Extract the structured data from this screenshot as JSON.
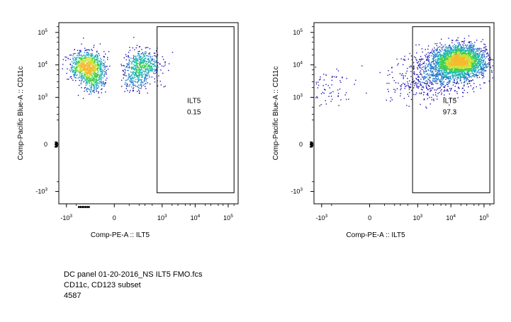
{
  "chart_data": [
    {
      "type": "scatter",
      "panel": "left",
      "xlabel": "Comp-PE-A :: ILT5",
      "ylabel": "Comp-Pacific Blue-A :: CD11c",
      "x_scale": "biexponential",
      "y_scale": "biexponential",
      "xlim": [
        -2000,
        200000
      ],
      "ylim": [
        -2000,
        200000
      ],
      "x_ticks": [
        {
          "value": -1000,
          "base": "-10",
          "exp": "3"
        },
        {
          "value": 0,
          "base": "0",
          "exp": ""
        },
        {
          "value": 1000,
          "base": "10",
          "exp": "3"
        },
        {
          "value": 10000,
          "base": "10",
          "exp": "4"
        },
        {
          "value": 100000,
          "base": "10",
          "exp": "5"
        }
      ],
      "y_ticks": [
        {
          "value": -1000,
          "base": "-10",
          "exp": "3"
        },
        {
          "value": 0,
          "base": "0",
          "exp": ""
        },
        {
          "value": 1000,
          "base": "10",
          "exp": "3"
        },
        {
          "value": 10000,
          "base": "10",
          "exp": "4"
        },
        {
          "value": 100000,
          "base": "10",
          "exp": "5"
        }
      ],
      "gate": {
        "name": "ILT5",
        "percent": "0.15",
        "x_range": [
          700,
          150000
        ],
        "y_range": [
          -1100,
          150000
        ]
      },
      "populations": [
        {
          "x_center": -250,
          "y_center": 10000,
          "x_spread": 0.32,
          "y_spread": 0.22,
          "count": 1400,
          "sign": "neg"
        },
        {
          "x_center": -150,
          "y_center": 4000,
          "x_spread": 0.25,
          "y_spread": 0.22,
          "count": 500,
          "sign": "neg"
        }
      ],
      "gate_events": [
        {
          "x": 2000,
          "y": 25000
        },
        {
          "x": 1500,
          "y": 7000
        },
        {
          "x": 900,
          "y": 2500
        },
        {
          "x": 1200,
          "y": 2300
        }
      ],
      "density_colors": [
        "#1c10b0",
        "#1f78c8",
        "#19b5b0",
        "#3ecf4a",
        "#cfe035",
        "#f6b92e"
      ]
    },
    {
      "type": "scatter",
      "panel": "right",
      "xlabel": "Comp-PE-A :: ILT5",
      "ylabel": "Comp-Pacific Blue-A :: CD11c",
      "x_scale": "biexponential",
      "y_scale": "biexponential",
      "xlim": [
        -2000,
        200000
      ],
      "ylim": [
        -2000,
        200000
      ],
      "x_ticks": [
        {
          "value": -1000,
          "base": "-10",
          "exp": "3"
        },
        {
          "value": 0,
          "base": "0",
          "exp": ""
        },
        {
          "value": 1000,
          "base": "10",
          "exp": "3"
        },
        {
          "value": 10000,
          "base": "10",
          "exp": "4"
        },
        {
          "value": 100000,
          "base": "10",
          "exp": "5"
        }
      ],
      "y_ticks": [
        {
          "value": -1000,
          "base": "-10",
          "exp": "3"
        },
        {
          "value": 0,
          "base": "0",
          "exp": ""
        },
        {
          "value": 1000,
          "base": "10",
          "exp": "3"
        },
        {
          "value": 10000,
          "base": "10",
          "exp": "4"
        },
        {
          "value": 100000,
          "base": "10",
          "exp": "5"
        }
      ],
      "gate": {
        "name": "ILT5",
        "percent": "97.3",
        "x_range": [
          700,
          150000
        ],
        "y_range": [
          -1100,
          150000
        ]
      },
      "populations": [
        {
          "x_center": 18000,
          "y_center": 13000,
          "x_spread": 0.38,
          "y_spread": 0.24,
          "count": 2800,
          "sign": "pos"
        },
        {
          "x_center": 4000,
          "y_center": 6000,
          "x_spread": 0.5,
          "y_spread": 0.35,
          "count": 600,
          "sign": "pos"
        },
        {
          "x_center": 800,
          "y_center": 2500,
          "x_spread": 0.45,
          "y_spread": 0.3,
          "count": 200,
          "sign": "mixed"
        }
      ],
      "density_colors": [
        "#1c10b0",
        "#1f78c8",
        "#19b5b0",
        "#3ecf4a",
        "#cfe035",
        "#f6b92e"
      ]
    }
  ],
  "caption": {
    "line1": "DC panel 01-20-2016_NS ILT5 FMO.fcs",
    "line2": "CD11c, CD123 subset",
    "line3": "4587"
  }
}
